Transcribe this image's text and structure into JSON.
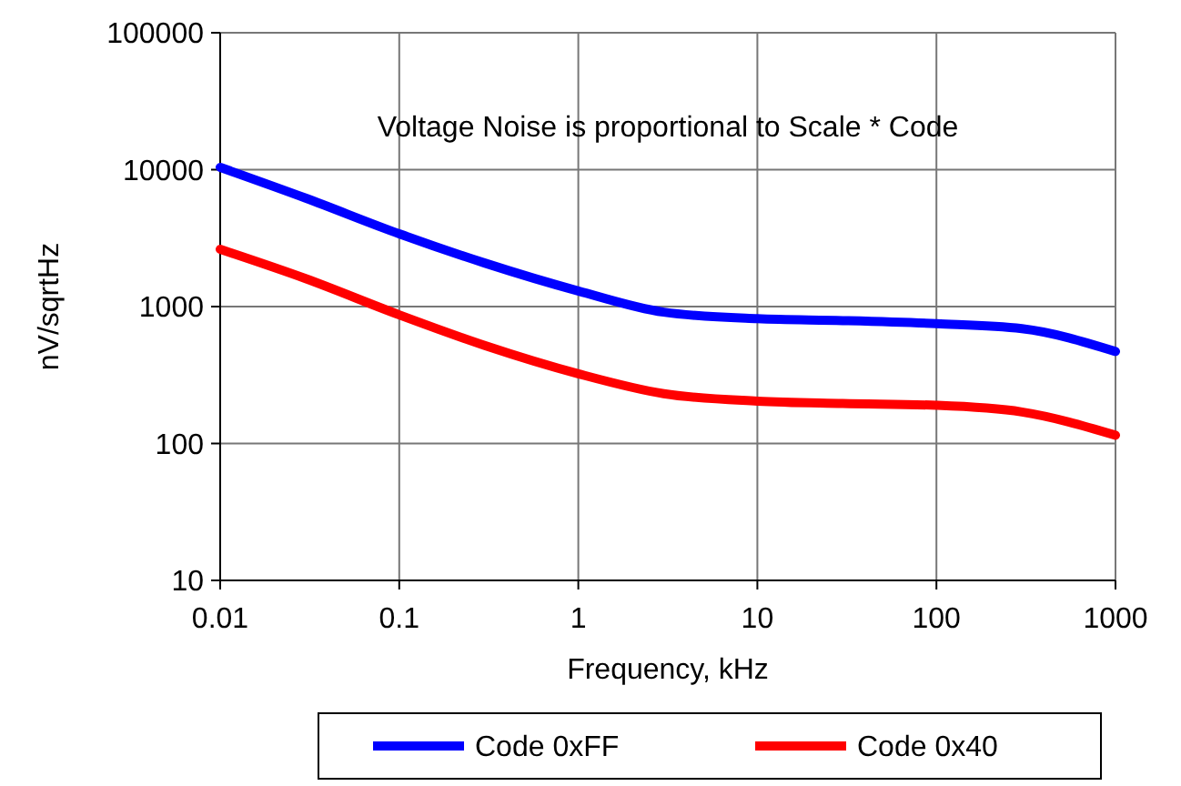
{
  "chart_data": {
    "type": "line",
    "xlabel": "Frequency, kHz",
    "ylabel": "nV/sqrtHz",
    "annotations": [
      "Voltage Noise is proportional to Scale * Code"
    ],
    "log": "xy",
    "grid": true,
    "legend": "bottom",
    "marker": "none",
    "line_style": "solid",
    "xlim": [
      0.01,
      1000
    ],
    "xticks": [
      0.01,
      0.1,
      1,
      10,
      100,
      1000
    ],
    "ylim": [
      10,
      100000
    ],
    "yticks": [
      10,
      100,
      1000,
      10000,
      100000
    ],
    "x": [
      0.01,
      0.03,
      0.1,
      0.3,
      1,
      3,
      10,
      30,
      100,
      300,
      1000
    ],
    "series": [
      {
        "name": "Code 0xFF",
        "color": "#0000ff",
        "values": [
          10400,
          6200,
          3400,
          2080,
          1300,
          910,
          815,
          790,
          750,
          690,
          470
        ]
      },
      {
        "name": "Code 0x40",
        "color": "#ff0000",
        "values": [
          2620,
          1600,
          870,
          520,
          323,
          231,
          204,
          196,
          190,
          170,
          115
        ]
      }
    ]
  }
}
